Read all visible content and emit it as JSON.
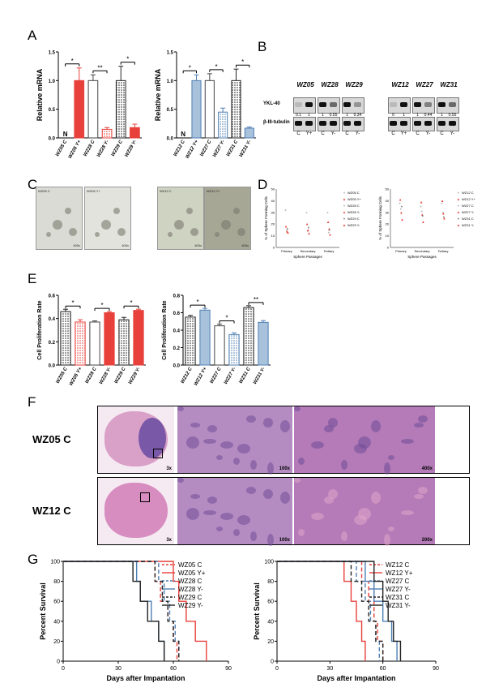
{
  "panels": {
    "A": "A",
    "B": "B",
    "C": "C",
    "D": "D",
    "E": "E",
    "F": "F",
    "G": "G"
  },
  "colors": {
    "red": "#e8403a",
    "redLight": "#f07f7a",
    "blue": "#4f7fb3",
    "blueLight": "#a9c2dc",
    "dark": "#222222",
    "gray": "#8a8a8a"
  },
  "panelA": {
    "ylabel": "Relative mRNA",
    "left": {
      "categories": [
        "WZ05 C",
        "WZ05 Y+",
        "WZ28 C",
        "WZ28 Y-",
        "WZ29 C",
        "WZ29 Y-"
      ],
      "values": [
        0.0,
        1.0,
        1.0,
        0.15,
        1.0,
        0.18
      ],
      "errors": [
        0,
        0.22,
        0.1,
        0.03,
        0.25,
        0.06
      ],
      "markers": [
        "N",
        "",
        "",
        "",
        "",
        ""
      ],
      "sig": [
        "*",
        "**",
        "*"
      ],
      "ylim": [
        0,
        1.5
      ],
      "yticks": [
        "0.0",
        "0.5",
        "1.0",
        "1.5"
      ]
    },
    "right": {
      "categories": [
        "WZ12 C",
        "WZ12 Y+",
        "WZ27 C",
        "WZ27 Y-",
        "WZ31 C",
        "WZ31 Y-"
      ],
      "values": [
        0.0,
        1.0,
        1.0,
        0.45,
        1.0,
        0.17
      ],
      "errors": [
        0,
        0.1,
        0.12,
        0.07,
        0.2,
        0.02
      ],
      "markers": [
        "N",
        "",
        "",
        "",
        "",
        ""
      ],
      "sig": [
        "*",
        "*",
        "*"
      ],
      "ylim": [
        0,
        1.5
      ],
      "yticks": [
        "0.0",
        "0.5",
        "1.0",
        "1.5"
      ]
    }
  },
  "panelB": {
    "group1": {
      "names": [
        "WZ05",
        "WZ28",
        "WZ29"
      ],
      "lanes": [
        "C",
        "Y+",
        "C",
        "Y-",
        "C",
        "Y-"
      ],
      "quant": [
        "0.1",
        "1",
        "1",
        "0.55",
        "1",
        "0.34"
      ]
    },
    "group2": {
      "names": [
        "WZ12",
        "WZ27",
        "WZ31"
      ],
      "lanes": [
        "C",
        "Y+",
        "C",
        "Y-",
        "C",
        "Y-"
      ],
      "quant": [
        "0",
        "1",
        "1",
        "0.44",
        "1",
        "0.55"
      ]
    },
    "rowLabels": [
      "YKL-40",
      "β-III-tubulin"
    ]
  },
  "panelC": {
    "images": [
      {
        "label": "WZ05 C",
        "mag": "400x"
      },
      {
        "label": "WZ05 Y+",
        "mag": "400x"
      },
      {
        "label": "WZ12 C",
        "mag": "400x"
      },
      {
        "label": "WZ12 Y+",
        "mag": "400x"
      }
    ]
  },
  "panelD": {
    "ylabel": "% of Sphere Forming Cells",
    "xlabel": "Sphere Passages",
    "categories": [
      "Primary",
      "Secondary",
      "Tertiary"
    ],
    "yticks": [
      "0",
      "10",
      "20",
      "30",
      "40",
      "50"
    ],
    "left": {
      "legend": [
        "WZ05 C",
        "WZ05 Y+",
        "WZ28 C",
        "WZ28 Y-",
        "WZ29 C",
        "WZ29 Y-"
      ],
      "series": [
        [
          32,
          30,
          30
        ],
        [
          18,
          20,
          22
        ],
        [
          15,
          14,
          13
        ],
        [
          14,
          15,
          16
        ],
        [
          16,
          17,
          15
        ],
        [
          13,
          12,
          11
        ]
      ]
    },
    "right": {
      "legend": [
        "WZ12 C",
        "WZ12 Y+",
        "WZ27 C",
        "WZ27 Y-",
        "WZ31 C",
        "WZ31 Y-"
      ],
      "series": [
        [
          38,
          35,
          38
        ],
        [
          41,
          39,
          40
        ],
        [
          33,
          31,
          30
        ],
        [
          30,
          28,
          29
        ],
        [
          35,
          27,
          26
        ],
        [
          24,
          22,
          25
        ]
      ]
    }
  },
  "panelE": {
    "ylabel": "Cell Proliferation Rate",
    "left": {
      "categories": [
        "WZ05 C",
        "WZ05 Y+",
        "WZ28 C",
        "WZ28 Y-",
        "WZ29 C",
        "WZ29 Y-"
      ],
      "values": [
        0.46,
        0.37,
        0.37,
        0.45,
        0.39,
        0.47
      ],
      "errors": [
        0.02,
        0.02,
        0.01,
        0.01,
        0.02,
        0.01
      ],
      "sig": [
        "*",
        "*",
        "*"
      ],
      "ylim": [
        0,
        0.6
      ],
      "yticks": [
        "0.0",
        "0.2",
        "0.4",
        "0.6"
      ]
    },
    "right": {
      "categories": [
        "WZ12 C",
        "WZ12 Y+",
        "WZ27 C",
        "WZ27 Y-",
        "WZ31 C",
        "WZ31 Y-"
      ],
      "values": [
        0.55,
        0.63,
        0.45,
        0.35,
        0.66,
        0.49
      ],
      "errors": [
        0.02,
        0.02,
        0.02,
        0.02,
        0.02,
        0.02
      ],
      "sig": [
        "*",
        "*",
        "**"
      ],
      "ylim": [
        0,
        0.8
      ],
      "yticks": [
        "0.0",
        "0.2",
        "0.4",
        "0.6",
        "0.8"
      ]
    }
  },
  "panelF": {
    "rows": [
      {
        "label": "WZ05 C",
        "mags": [
          "3x",
          "100x",
          "400x"
        ]
      },
      {
        "label": "WZ12 C",
        "mags": [
          "3x",
          "100x",
          "200x"
        ]
      }
    ]
  },
  "panelG": {
    "ylabel": "Percent Survival",
    "xlabel": "Days after Impantation",
    "xticks": [
      "0",
      "30",
      "60",
      "90"
    ],
    "yticks": [
      "0",
      "20",
      "40",
      "60",
      "80",
      "100"
    ],
    "left": {
      "series": [
        {
          "name": "WZ05 C",
          "times": [
            50,
            53,
            57,
            60,
            62
          ],
          "color": "#e8403a",
          "dash": "5,3"
        },
        {
          "name": "WZ05 Y+",
          "times": [
            60,
            63,
            67,
            72,
            78
          ],
          "color": "#e8403a",
          "dash": ""
        },
        {
          "name": "WZ28 C",
          "times": [
            52,
            55,
            58,
            61,
            63
          ],
          "color": "#4f7fb3",
          "dash": "5,3"
        },
        {
          "name": "WZ28 Y-",
          "times": [
            40,
            42,
            48,
            52,
            55
          ],
          "color": "#4f7fb3",
          "dash": ""
        },
        {
          "name": "WZ29 C",
          "times": [
            50,
            54,
            57,
            60,
            63
          ],
          "color": "#222222",
          "dash": "5,3"
        },
        {
          "name": "WZ29 Y-",
          "times": [
            38,
            42,
            46,
            52,
            55
          ],
          "color": "#222222",
          "dash": ""
        }
      ]
    },
    "right": {
      "series": [
        {
          "name": "WZ12 C",
          "times": [
            48,
            52,
            55,
            57,
            60
          ],
          "color": "#e8403a",
          "dash": "5,3"
        },
        {
          "name": "WZ12 Y+",
          "times": [
            38,
            42,
            45,
            48,
            50
          ],
          "color": "#e8403a",
          "dash": ""
        },
        {
          "name": "WZ27 C",
          "times": [
            45,
            50,
            53,
            56,
            58
          ],
          "color": "#4f7fb3",
          "dash": "5,3"
        },
        {
          "name": "WZ27 Y-",
          "times": [
            50,
            55,
            60,
            65,
            68
          ],
          "color": "#4f7fb3",
          "dash": ""
        },
        {
          "name": "WZ31 C",
          "times": [
            42,
            48,
            52,
            56,
            60
          ],
          "color": "#222222",
          "dash": "5,3"
        },
        {
          "name": "WZ31 Y-",
          "times": [
            55,
            60,
            63,
            66,
            70
          ],
          "color": "#222222",
          "dash": ""
        }
      ]
    }
  }
}
